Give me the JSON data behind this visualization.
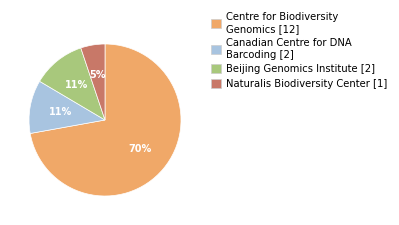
{
  "labels": [
    "Centre for Biodiversity\nGenomics [12]",
    "Canadian Centre for DNA\nBarcoding [2]",
    "Beijing Genomics Institute [2]",
    "Naturalis Biodiversity Center [1]"
  ],
  "values": [
    70,
    11,
    11,
    5
  ],
  "colors": [
    "#F0A868",
    "#A8C4E0",
    "#A8C87C",
    "#C87868"
  ],
  "pct_labels": [
    "70%",
    "11%",
    "11%",
    "5%"
  ],
  "background_color": "#ffffff",
  "startangle": 90,
  "legend_fontsize": 7.2
}
